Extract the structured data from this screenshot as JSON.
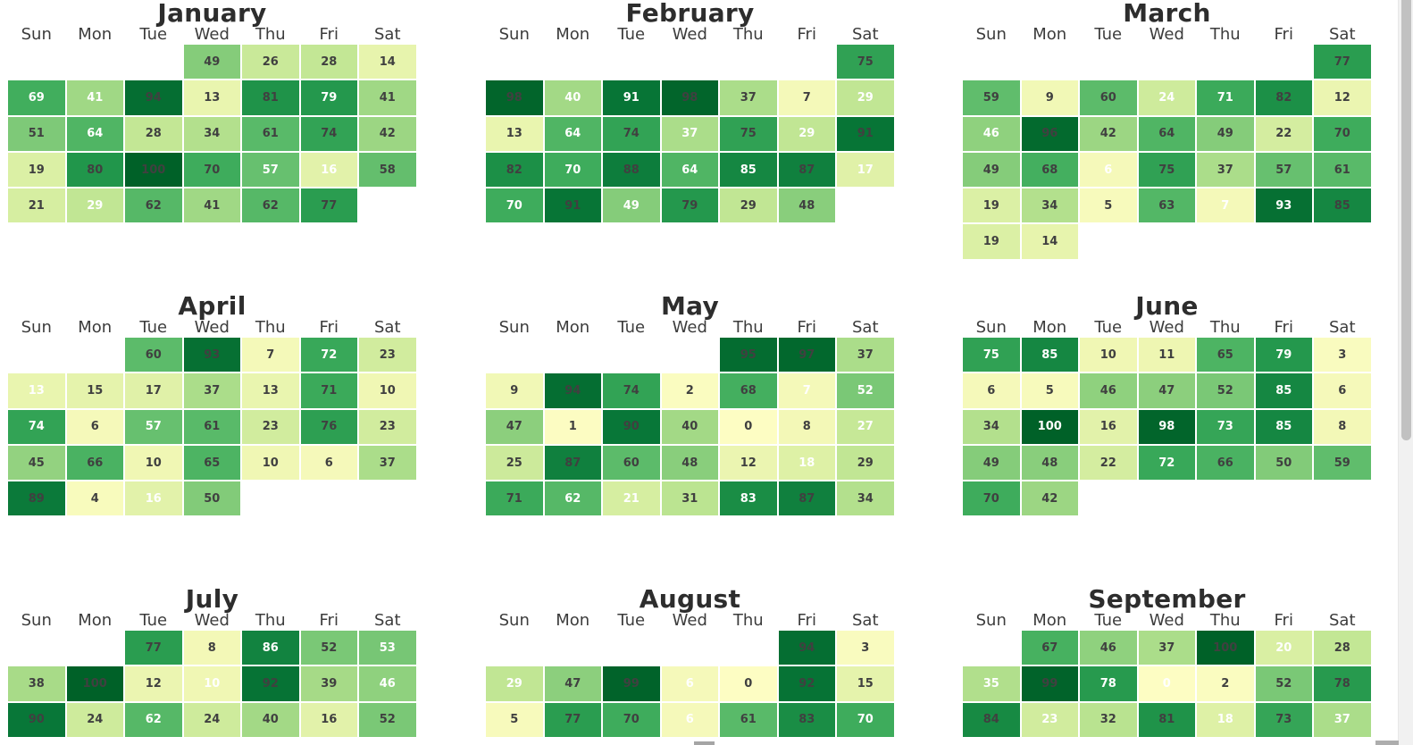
{
  "page": {
    "background": "#ffffff"
  },
  "chart_data": {
    "type": "heatmap",
    "subtype": "calendar-heatmap",
    "title": "",
    "day_headers": [
      "Sun",
      "Mon",
      "Tue",
      "Wed",
      "Thu",
      "Fri",
      "Sat"
    ],
    "value_range": [
      0,
      100
    ],
    "colormap_stops": [
      [
        0,
        "#fdfdc3"
      ],
      [
        10,
        "#f0f7b4"
      ],
      [
        20,
        "#d9efa3"
      ],
      [
        30,
        "#bee592"
      ],
      [
        40,
        "#a3d986"
      ],
      [
        50,
        "#82cb79"
      ],
      [
        60,
        "#5cbb6a"
      ],
      [
        70,
        "#3eac5c"
      ],
      [
        80,
        "#21964b"
      ],
      [
        90,
        "#087738"
      ],
      [
        100,
        "#006128"
      ]
    ],
    "text_colors": {
      "dark": "#404040",
      "light": "#ffffff"
    },
    "months": [
      {
        "name": "January",
        "weeks": [
          [
            null,
            null,
            null,
            {
              "v": 49
            },
            {
              "v": 26
            },
            {
              "v": 28
            },
            {
              "v": 14
            }
          ],
          [
            {
              "v": 69,
              "tc": "light"
            },
            {
              "v": 41,
              "tc": "light"
            },
            {
              "v": 94
            },
            {
              "v": 13
            },
            {
              "v": 81
            },
            {
              "v": 79,
              "tc": "light"
            },
            {
              "v": 41
            }
          ],
          [
            {
              "v": 51
            },
            {
              "v": 64,
              "tc": "light"
            },
            {
              "v": 28
            },
            {
              "v": 34
            },
            {
              "v": 61
            },
            {
              "v": 74
            },
            {
              "v": 42
            }
          ],
          [
            {
              "v": 19
            },
            {
              "v": 80
            },
            {
              "v": 100
            },
            {
              "v": 70
            },
            {
              "v": 57,
              "tc": "light"
            },
            {
              "v": 16,
              "tc": "light"
            },
            {
              "v": 58
            }
          ],
          [
            {
              "v": 21
            },
            {
              "v": 29,
              "tc": "light"
            },
            {
              "v": 62
            },
            {
              "v": 41
            },
            {
              "v": 62
            },
            {
              "v": 77
            },
            null
          ]
        ]
      },
      {
        "name": "February",
        "weeks": [
          [
            null,
            null,
            null,
            null,
            null,
            null,
            {
              "v": 75
            }
          ],
          [
            {
              "v": 98
            },
            {
              "v": 40,
              "tc": "light"
            },
            {
              "v": 91,
              "tc": "light"
            },
            {
              "v": 98
            },
            {
              "v": 37
            },
            {
              "v": 7
            },
            {
              "v": 29,
              "tc": "light"
            }
          ],
          [
            {
              "v": 13
            },
            {
              "v": 64,
              "tc": "light"
            },
            {
              "v": 74
            },
            {
              "v": 37,
              "tc": "light"
            },
            {
              "v": 75
            },
            {
              "v": 29,
              "tc": "light"
            },
            {
              "v": 91
            }
          ],
          [
            {
              "v": 82
            },
            {
              "v": 70,
              "tc": "light"
            },
            {
              "v": 88
            },
            {
              "v": 64,
              "tc": "light"
            },
            {
              "v": 85,
              "tc": "light"
            },
            {
              "v": 87
            },
            {
              "v": 17,
              "tc": "light"
            }
          ],
          [
            {
              "v": 70,
              "tc": "light"
            },
            {
              "v": 91
            },
            {
              "v": 49,
              "tc": "light"
            },
            {
              "v": 79
            },
            {
              "v": 29
            },
            {
              "v": 48
            },
            null
          ]
        ]
      },
      {
        "name": "March",
        "weeks": [
          [
            null,
            null,
            null,
            null,
            null,
            null,
            {
              "v": 77
            }
          ],
          [
            {
              "v": 59
            },
            {
              "v": 9
            },
            {
              "v": 60
            },
            {
              "v": 24,
              "tc": "light"
            },
            {
              "v": 71,
              "tc": "light"
            },
            {
              "v": 82
            },
            {
              "v": 12
            }
          ],
          [
            {
              "v": 46,
              "tc": "light"
            },
            {
              "v": 96
            },
            {
              "v": 42
            },
            {
              "v": 64
            },
            {
              "v": 49
            },
            {
              "v": 22
            },
            {
              "v": 70
            }
          ],
          [
            {
              "v": 49
            },
            {
              "v": 68
            },
            {
              "v": 6,
              "tc": "light"
            },
            {
              "v": 75
            },
            {
              "v": 37
            },
            {
              "v": 57
            },
            {
              "v": 61
            }
          ],
          [
            {
              "v": 19
            },
            {
              "v": 34
            },
            {
              "v": 5
            },
            {
              "v": 63
            },
            {
              "v": 7,
              "tc": "light"
            },
            {
              "v": 93,
              "tc": "light"
            },
            {
              "v": 85
            }
          ],
          [
            {
              "v": 19
            },
            {
              "v": 14
            },
            null,
            null,
            null,
            null,
            null
          ]
        ]
      },
      {
        "name": "April",
        "weeks": [
          [
            null,
            null,
            {
              "v": 60
            },
            {
              "v": 93
            },
            {
              "v": 7
            },
            {
              "v": 72,
              "tc": "light"
            },
            {
              "v": 23
            }
          ],
          [
            {
              "v": 13,
              "tc": "light"
            },
            {
              "v": 15
            },
            {
              "v": 17
            },
            {
              "v": 37
            },
            {
              "v": 13
            },
            {
              "v": 71
            },
            {
              "v": 10
            }
          ],
          [
            {
              "v": 74,
              "tc": "light"
            },
            {
              "v": 6
            },
            {
              "v": 57,
              "tc": "light"
            },
            {
              "v": 61
            },
            {
              "v": 23
            },
            {
              "v": 76
            },
            {
              "v": 23
            }
          ],
          [
            {
              "v": 45
            },
            {
              "v": 66
            },
            {
              "v": 10
            },
            {
              "v": 65
            },
            {
              "v": 10
            },
            {
              "v": 6
            },
            {
              "v": 37
            }
          ],
          [
            {
              "v": 89
            },
            {
              "v": 4
            },
            {
              "v": 16,
              "tc": "light"
            },
            {
              "v": 50
            },
            null,
            null,
            null
          ]
        ]
      },
      {
        "name": "May",
        "weeks": [
          [
            null,
            null,
            null,
            null,
            {
              "v": 95
            },
            {
              "v": 97
            },
            {
              "v": 37
            }
          ],
          [
            {
              "v": 9
            },
            {
              "v": 94
            },
            {
              "v": 74
            },
            {
              "v": 2
            },
            {
              "v": 68
            },
            {
              "v": 7,
              "tc": "light"
            },
            {
              "v": 52,
              "tc": "light"
            }
          ],
          [
            {
              "v": 47
            },
            {
              "v": 1
            },
            {
              "v": 90
            },
            {
              "v": 40
            },
            {
              "v": 0
            },
            {
              "v": 8
            },
            {
              "v": 27,
              "tc": "light"
            }
          ],
          [
            {
              "v": 25
            },
            {
              "v": 87
            },
            {
              "v": 60
            },
            {
              "v": 48
            },
            {
              "v": 12
            },
            {
              "v": 18,
              "tc": "light"
            },
            {
              "v": 29
            }
          ],
          [
            {
              "v": 71
            },
            {
              "v": 62,
              "tc": "light"
            },
            {
              "v": 21,
              "tc": "light"
            },
            {
              "v": 31
            },
            {
              "v": 83,
              "tc": "light"
            },
            {
              "v": 87
            },
            {
              "v": 34
            }
          ]
        ]
      },
      {
        "name": "June",
        "weeks": [
          [
            {
              "v": 75,
              "tc": "light"
            },
            {
              "v": 85,
              "tc": "light"
            },
            {
              "v": 10
            },
            {
              "v": 11
            },
            {
              "v": 65
            },
            {
              "v": 79,
              "tc": "light"
            },
            {
              "v": 3
            }
          ],
          [
            {
              "v": 6
            },
            {
              "v": 5
            },
            {
              "v": 46
            },
            {
              "v": 47
            },
            {
              "v": 52
            },
            {
              "v": 85,
              "tc": "light"
            },
            {
              "v": 6
            }
          ],
          [
            {
              "v": 34
            },
            {
              "v": 100,
              "tc": "light"
            },
            {
              "v": 16
            },
            {
              "v": 98,
              "tc": "light"
            },
            {
              "v": 73,
              "tc": "light"
            },
            {
              "v": 85,
              "tc": "light"
            },
            {
              "v": 8
            }
          ],
          [
            {
              "v": 49
            },
            {
              "v": 48
            },
            {
              "v": 22
            },
            {
              "v": 72,
              "tc": "light"
            },
            {
              "v": 66
            },
            {
              "v": 50
            },
            {
              "v": 59
            }
          ],
          [
            {
              "v": 70
            },
            {
              "v": 42
            },
            null,
            null,
            null,
            null,
            null
          ]
        ]
      },
      {
        "name": "July",
        "weeks": [
          [
            null,
            null,
            {
              "v": 77
            },
            {
              "v": 8
            },
            {
              "v": 86,
              "tc": "light"
            },
            {
              "v": 52
            },
            {
              "v": 53,
              "tc": "light"
            }
          ],
          [
            {
              "v": 38
            },
            {
              "v": 100
            },
            {
              "v": 12
            },
            {
              "v": 10,
              "tc": "light"
            },
            {
              "v": 92
            },
            {
              "v": 39
            },
            {
              "v": 46,
              "tc": "light"
            }
          ],
          [
            {
              "v": 90
            },
            {
              "v": 24
            },
            {
              "v": 62,
              "tc": "light"
            },
            {
              "v": 24
            },
            {
              "v": 40
            },
            {
              "v": 16
            },
            {
              "v": 52
            }
          ]
        ]
      },
      {
        "name": "August",
        "weeks": [
          [
            null,
            null,
            null,
            null,
            null,
            {
              "v": 94
            },
            {
              "v": 3
            }
          ],
          [
            {
              "v": 29,
              "tc": "light"
            },
            {
              "v": 47
            },
            {
              "v": 99
            },
            {
              "v": 6,
              "tc": "light"
            },
            {
              "v": 0
            },
            {
              "v": 92
            },
            {
              "v": 15
            }
          ],
          [
            {
              "v": 5
            },
            {
              "v": 77
            },
            {
              "v": 70
            },
            {
              "v": 6,
              "tc": "light"
            },
            {
              "v": 61
            },
            {
              "v": 83
            },
            {
              "v": 70,
              "tc": "light"
            }
          ]
        ]
      },
      {
        "name": "September",
        "weeks": [
          [
            null,
            {
              "v": 67
            },
            {
              "v": 46
            },
            {
              "v": 37
            },
            {
              "v": 100
            },
            {
              "v": 20,
              "tc": "light"
            },
            {
              "v": 28
            }
          ],
          [
            {
              "v": 35,
              "tc": "light"
            },
            {
              "v": 99
            },
            {
              "v": 78,
              "tc": "light"
            },
            {
              "v": 0,
              "tc": "light"
            },
            {
              "v": 2
            },
            {
              "v": 52
            },
            {
              "v": 78
            }
          ],
          [
            {
              "v": 84
            },
            {
              "v": 23,
              "tc": "light"
            },
            {
              "v": 32
            },
            {
              "v": 81
            },
            {
              "v": 18,
              "tc": "light"
            },
            {
              "v": 73
            },
            {
              "v": 37,
              "tc": "light"
            }
          ]
        ]
      }
    ]
  },
  "ui": {
    "scrollbar": {
      "track_color": "#f1f1f1",
      "thumb_color": "#c1c1c1"
    }
  }
}
